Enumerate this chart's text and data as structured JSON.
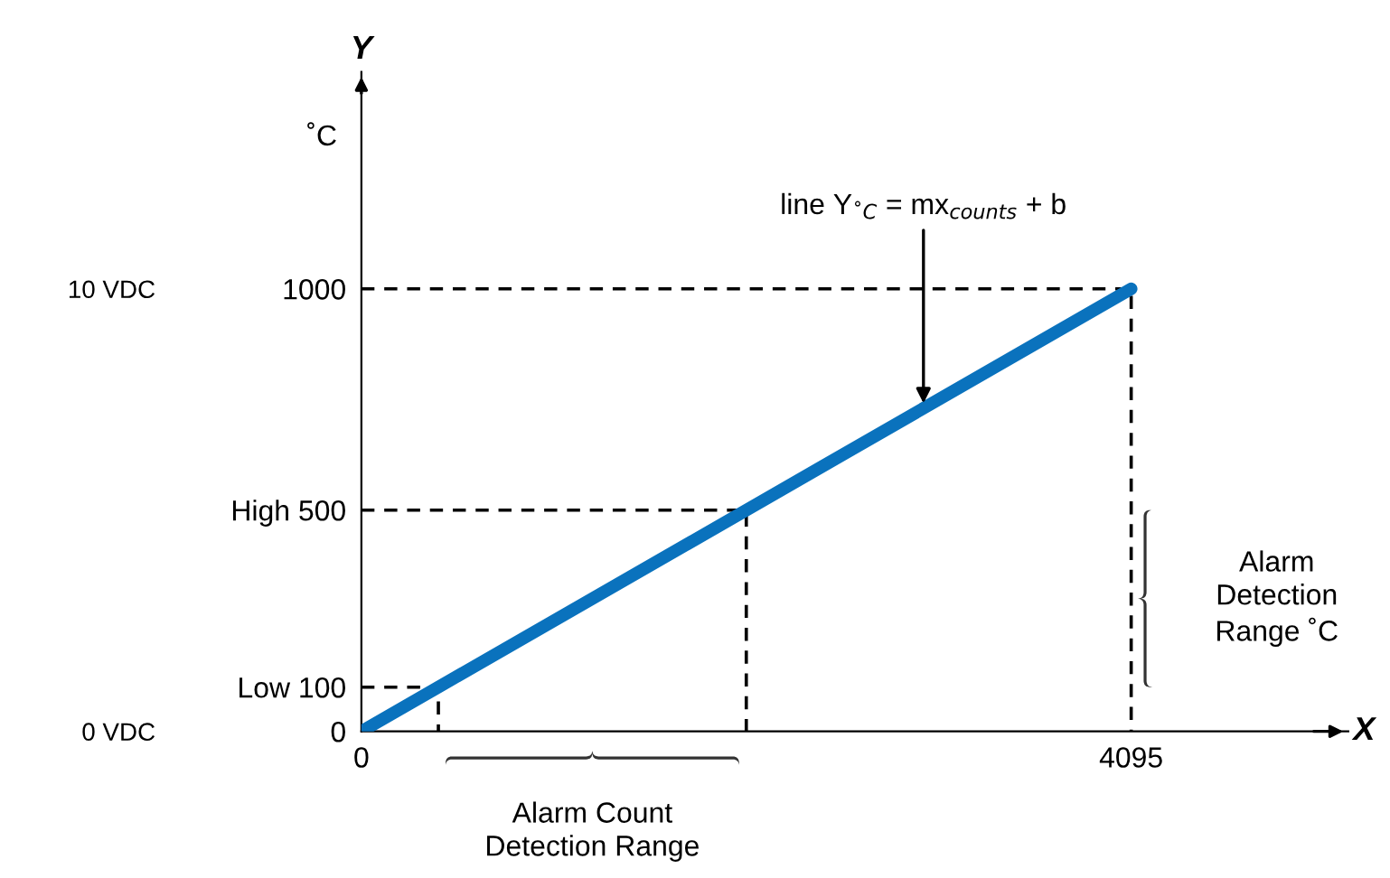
{
  "chart_data": {
    "type": "line",
    "xlabel": "X",
    "ylabel": "Y",
    "xlim": [
      0,
      5250
    ],
    "ylim": [
      0,
      1490
    ],
    "xticks": [
      0,
      4095
    ],
    "yticks": [
      0,
      {
        "value": 100,
        "label": "Low 100"
      },
      {
        "value": 500,
        "label": "High 500"
      },
      1000
    ],
    "y2lim": [
      0,
      14.9
    ],
    "y2ticks": [
      {
        "value": 0,
        "label": "0 VDC"
      },
      {
        "value": 10,
        "label": "10 VDC"
      }
    ],
    "grid": false,
    "legend": false,
    "series": [
      {
        "x": [
          0,
          409.5,
          409.5
        ],
        "values": [
          100,
          100,
          0
        ],
        "color": "#000000",
        "line_style": "dashed"
      },
      {
        "x": [
          0,
          2047.5,
          2047.5
        ],
        "values": [
          500,
          500,
          0
        ],
        "color": "#000000",
        "line_style": "dashed"
      },
      {
        "x": [
          0,
          4095,
          4095
        ],
        "values": [
          1000,
          1000,
          0
        ],
        "color": "#000000",
        "line_style": "dashed"
      },
      {
        "x": [
          0,
          4095
        ],
        "values": [
          0,
          1000
        ],
        "color": "#0a72bd",
        "line_style": "solid"
      }
    ],
    "annotations": [
      {
        "text": "line Y$_{˚C}$ = mx$_{counts}$ + b",
        "x": 2990,
        "y": 730
      },
      {
        "text": "Alarm\nDetection\nRange ˚C",
        "x": 4095,
        "y": 300
      },
      "Alarm Count\nDetection Range",
      "˚C"
    ]
  }
}
